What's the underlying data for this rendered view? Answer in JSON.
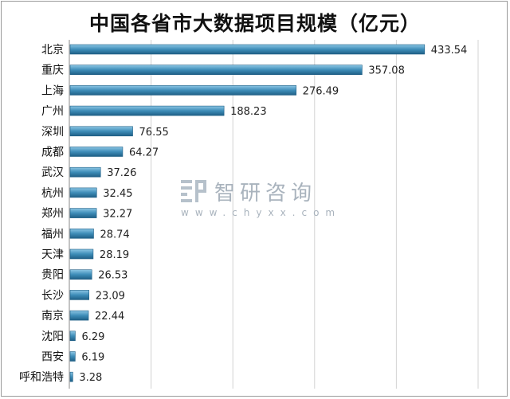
{
  "chart_data": {
    "type": "bar",
    "orientation": "horizontal",
    "title": "中国各省市大数据项目规模（亿元）",
    "xlabel": "",
    "ylabel": "",
    "categories": [
      "北京",
      "重庆",
      "上海",
      "广州",
      "深圳",
      "成都",
      "武汉",
      "杭州",
      "郑州",
      "福州",
      "天津",
      "贵阳",
      "长沙",
      "南京",
      "沈阳",
      "西安",
      "呼和浩特"
    ],
    "values": [
      433.54,
      357.08,
      276.49,
      188.23,
      76.55,
      64.27,
      37.26,
      32.45,
      32.27,
      28.74,
      28.19,
      26.53,
      23.09,
      22.44,
      6.29,
      6.19,
      3.28
    ],
    "value_labels": [
      "433.54",
      "357.08",
      "276.49",
      "188.23",
      "76.55",
      "64.27",
      "37.26",
      "32.45",
      "32.27",
      "28.74",
      "28.19",
      "26.53",
      "23.09",
      "22.44",
      "6.29",
      "6.19",
      "3.28"
    ],
    "xlim": [
      0,
      500
    ],
    "grid": true,
    "legend": "none",
    "bar_color": "#3e8db8",
    "bar_color_dark": "#1f5f86",
    "bar_color_light": "#8cc6e4"
  },
  "watermark": {
    "name": "智研咨询",
    "url": "www.chyxx.com"
  }
}
